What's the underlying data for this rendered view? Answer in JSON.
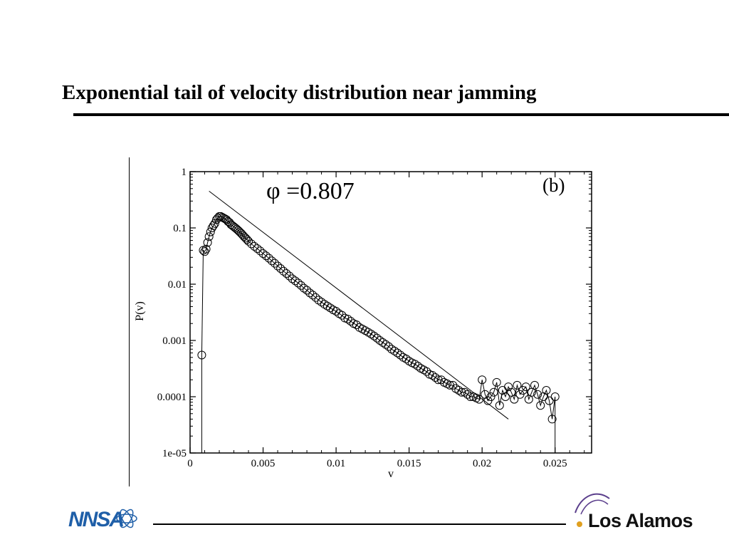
{
  "slide": {
    "title": "Exponential tail of velocity distribution near jamming"
  },
  "logos": {
    "left": "NNSA",
    "right": "Los Alamos"
  },
  "colors": {
    "ink": "#000000",
    "nnsa_blue": "#1f5fa8",
    "lanl_purple": "#5b3f8c"
  },
  "chart_data": {
    "type": "scatter",
    "annotation": "φ =0.807",
    "panel_label": "(b)",
    "xlabel": "v",
    "ylabel": "P(v)",
    "xlim": [
      0,
      0.0275
    ],
    "ylim": [
      1e-05,
      1
    ],
    "y_scale": "log",
    "x_ticks": [
      0,
      0.005,
      0.01,
      0.015,
      0.02,
      0.025
    ],
    "x_tick_labels": [
      "0",
      "0.005",
      "0.01",
      "0.015",
      "0.02",
      "0.025"
    ],
    "y_ticks": [
      1,
      0.1,
      0.01,
      0.001,
      0.0001,
      1e-05
    ],
    "y_tick_labels": [
      "1",
      "0.1",
      "0.01",
      "0.001",
      "0.0001",
      "1e-05"
    ],
    "series": [
      {
        "marker": "open-circle",
        "connected": true,
        "x": [
          0.0008,
          0.0009,
          0.001,
          0.0011,
          0.0012,
          0.0013,
          0.0014,
          0.0015,
          0.0016,
          0.0017,
          0.0018,
          0.0019,
          0.002,
          0.0021,
          0.0022,
          0.0023,
          0.0024,
          0.0025,
          0.0026,
          0.0027,
          0.0028,
          0.0029,
          0.003,
          0.0031,
          0.0032,
          0.0033,
          0.0034,
          0.0035,
          0.0036,
          0.0037,
          0.0038,
          0.0039,
          0.004,
          0.0042,
          0.0044,
          0.0046,
          0.0048,
          0.005,
          0.0052,
          0.0054,
          0.0056,
          0.0058,
          0.006,
          0.0062,
          0.0064,
          0.0066,
          0.0068,
          0.007,
          0.0072,
          0.0074,
          0.0076,
          0.0078,
          0.008,
          0.0082,
          0.0084,
          0.0086,
          0.0088,
          0.009,
          0.0092,
          0.0094,
          0.0096,
          0.0098,
          0.01,
          0.0102,
          0.0104,
          0.0106,
          0.0108,
          0.011,
          0.0112,
          0.0114,
          0.0116,
          0.0118,
          0.012,
          0.0122,
          0.0124,
          0.0126,
          0.0128,
          0.013,
          0.0132,
          0.0134,
          0.0136,
          0.0138,
          0.014,
          0.0142,
          0.0144,
          0.0146,
          0.0148,
          0.015,
          0.0152,
          0.0154,
          0.0156,
          0.0158,
          0.016,
          0.0162,
          0.0164,
          0.0166,
          0.0168,
          0.017,
          0.0172,
          0.0174,
          0.0176,
          0.0178,
          0.018,
          0.0182,
          0.0184,
          0.0186,
          0.0188,
          0.019,
          0.0192,
          0.0194,
          0.0196,
          0.0198,
          0.02,
          0.0202,
          0.0204,
          0.0206,
          0.0208,
          0.021,
          0.0212,
          0.0214,
          0.0216,
          0.0218,
          0.022,
          0.0222,
          0.0224,
          0.0226,
          0.0228,
          0.023,
          0.0232,
          0.0234,
          0.0236,
          0.0238,
          0.024,
          0.0242,
          0.0244,
          0.0246,
          0.0248,
          0.025
        ],
        "y": [
          0.00055,
          0.04,
          0.038,
          0.042,
          0.055,
          0.07,
          0.085,
          0.1,
          0.11,
          0.12,
          0.14,
          0.15,
          0.16,
          0.16,
          0.155,
          0.15,
          0.145,
          0.14,
          0.13,
          0.125,
          0.115,
          0.11,
          0.105,
          0.1,
          0.095,
          0.09,
          0.085,
          0.08,
          0.075,
          0.07,
          0.066,
          0.062,
          0.058,
          0.052,
          0.047,
          0.043,
          0.039,
          0.035,
          0.032,
          0.029,
          0.026,
          0.0235,
          0.021,
          0.019,
          0.017,
          0.0155,
          0.014,
          0.0125,
          0.0115,
          0.0105,
          0.0095,
          0.0085,
          0.0078,
          0.007,
          0.0064,
          0.0058,
          0.0052,
          0.0048,
          0.0044,
          0.0041,
          0.0038,
          0.0035,
          0.0033,
          0.003,
          0.0028,
          0.0025,
          0.0024,
          0.0022,
          0.002,
          0.0019,
          0.0017,
          0.0016,
          0.0015,
          0.0014,
          0.0013,
          0.0012,
          0.0011,
          0.001,
          0.00092,
          0.00085,
          0.00078,
          0.0007,
          0.00065,
          0.0006,
          0.00055,
          0.0005,
          0.00047,
          0.00043,
          0.0004,
          0.00038,
          0.00035,
          0.00032,
          0.0003,
          0.00028,
          0.00025,
          0.00024,
          0.00022,
          0.0002,
          0.0002,
          0.00018,
          0.00017,
          0.00016,
          0.00016,
          0.00014,
          0.00013,
          0.00012,
          0.00012,
          0.00011,
          0.0001,
          0.0001,
          9.5e-05,
          9e-05,
          0.0002,
          0.00011,
          8.5e-05,
          0.0001,
          0.00012,
          0.00018,
          7e-05,
          0.00013,
          0.0001,
          0.00015,
          0.00012,
          9e-05,
          0.00016,
          0.00011,
          0.00013,
          0.00015,
          9e-05,
          0.00012,
          0.00016,
          0.00011,
          7e-05,
          0.0001,
          0.00013,
          8.5e-05,
          4e-05,
          0.0001
        ]
      },
      {
        "name": "",
        "type": "line",
        "x": [
          0.0013,
          0.0218
        ],
        "y": [
          0.45,
          4e-05
        ]
      }
    ]
  }
}
